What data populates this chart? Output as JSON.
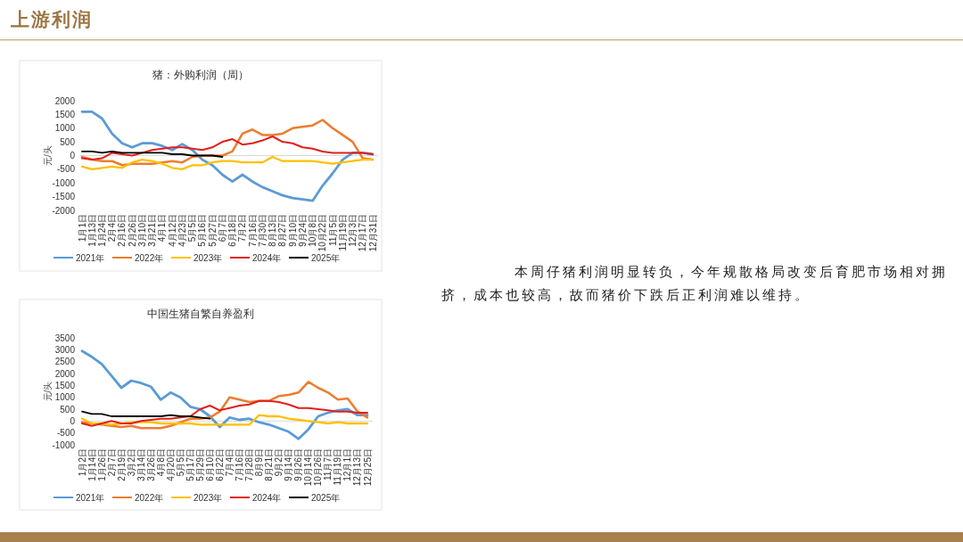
{
  "chart_data": [
    {
      "type": "line",
      "title": "猪：外购利润（周）",
      "ylabel": "元/头",
      "ylim": [
        -2000,
        2000
      ],
      "yticks": [
        -2000,
        -1500,
        -1000,
        -500,
        0,
        500,
        1000,
        1500,
        2000
      ],
      "legend": "bottom",
      "categories": [
        "1月1日",
        "1月13日",
        "1月24日",
        "2月4日",
        "2月16日",
        "2月26日",
        "3月10日",
        "3月21日",
        "4月1日",
        "4月12日",
        "4月23日",
        "5月5日",
        "5月16日",
        "5月27日",
        "6月7日",
        "6月18日",
        "7月2日",
        "7月16日",
        "7月30日",
        "8月13日",
        "8月27日",
        "9月10日",
        "9月24日",
        "10月8日",
        "10月22日",
        "11月5日",
        "11月19日",
        "12月3日",
        "12月17日",
        "12月31日"
      ],
      "series": [
        {
          "name": "2021年",
          "color": "#5b9bd5",
          "values": [
            1600,
            1600,
            1350,
            800,
            450,
            300,
            450,
            450,
            350,
            200,
            420,
            200,
            -150,
            -350,
            -700,
            -950,
            -700,
            -950,
            -1150,
            -1300,
            -1450,
            -1550,
            -1600,
            -1650,
            -1100,
            -650,
            -150,
            100,
            100,
            50
          ]
        },
        {
          "name": "2022年",
          "color": "#ed7d31",
          "values": [
            -50,
            -150,
            -200,
            -200,
            -350,
            -300,
            -300,
            -300,
            -250,
            -200,
            -250,
            -50,
            0,
            0,
            0,
            150,
            800,
            950,
            750,
            750,
            800,
            1000,
            1050,
            1100,
            1300,
            1000,
            750,
            500,
            -100,
            -150
          ]
        },
        {
          "name": "2023年",
          "color": "#ffc000",
          "values": [
            -400,
            -500,
            -450,
            -400,
            -450,
            -250,
            -150,
            -200,
            -300,
            -450,
            -500,
            -350,
            -350,
            -250,
            -200,
            -200,
            -250,
            -250,
            -250,
            -50,
            -200,
            -200,
            -200,
            -200,
            -250,
            -300,
            -250,
            -200,
            -150,
            -150
          ]
        },
        {
          "name": "2024年",
          "color": "#e0201b",
          "values": [
            -100,
            -150,
            -100,
            100,
            50,
            0,
            100,
            200,
            250,
            300,
            300,
            250,
            200,
            300,
            500,
            600,
            400,
            450,
            550,
            700,
            500,
            450,
            300,
            250,
            150,
            100,
            100,
            100,
            100,
            50
          ]
        },
        {
          "name": "2025年",
          "color": "#000000",
          "values": [
            150,
            150,
            100,
            150,
            100,
            100,
            100,
            100,
            100,
            50,
            50,
            0,
            0,
            0,
            -50,
            null,
            null,
            null,
            null,
            null,
            null,
            null,
            null,
            null,
            null,
            null,
            null,
            null,
            null,
            null
          ]
        }
      ]
    },
    {
      "type": "line",
      "title": "中国生猪自繁自养盈利",
      "ylabel": "元/头",
      "ylim": [
        -1000,
        3500
      ],
      "yticks": [
        -1000,
        -500,
        0,
        500,
        1000,
        1500,
        2000,
        2500,
        3000,
        3500
      ],
      "legend": "bottom",
      "categories": [
        "1月2日",
        "1月14日",
        "1月26日",
        "2月7日",
        "2月19日",
        "3月2日",
        "3月14日",
        "3月26日",
        "4月8日",
        "4月20日",
        "5月5日",
        "5月17日",
        "5月29日",
        "6月10日",
        "6月22日",
        "7月4日",
        "7月16日",
        "7月28日",
        "8月9日",
        "8月21日",
        "9月2日",
        "9月14日",
        "9月26日",
        "10月14日",
        "10月26日",
        "11月7日",
        "11月19日",
        "12月1日",
        "12月13日",
        "12月25日"
      ],
      "series": [
        {
          "name": "2021年",
          "color": "#5b9bd5",
          "values": [
            2950,
            2700,
            2400,
            1900,
            1400,
            1700,
            1600,
            1450,
            900,
            1200,
            1000,
            600,
            500,
            200,
            -250,
            150,
            50,
            100,
            -50,
            -150,
            -300,
            -450,
            -750,
            -350,
            200,
            350,
            450,
            500,
            250,
            250
          ]
        },
        {
          "name": "2022年",
          "color": "#ed7d31",
          "values": [
            -50,
            -100,
            -150,
            -200,
            -250,
            -200,
            -300,
            -300,
            -300,
            -200,
            -50,
            100,
            100,
            150,
            400,
            1000,
            900,
            800,
            850,
            850,
            1050,
            1100,
            1200,
            1650,
            1400,
            1200,
            900,
            950,
            400,
            150
          ]
        },
        {
          "name": "2023年",
          "color": "#ffc000",
          "values": [
            100,
            -100,
            -100,
            -150,
            -100,
            -50,
            -50,
            -50,
            -100,
            -100,
            -100,
            -100,
            -150,
            -150,
            -150,
            -150,
            -150,
            -150,
            250,
            200,
            200,
            100,
            50,
            0,
            -50,
            -100,
            -50,
            -100,
            -100,
            -100
          ]
        },
        {
          "name": "2024年",
          "color": "#e0201b",
          "values": [
            -100,
            -200,
            -100,
            0,
            -100,
            -100,
            0,
            50,
            100,
            100,
            150,
            200,
            500,
            650,
            450,
            550,
            650,
            700,
            850,
            850,
            800,
            700,
            550,
            550,
            500,
            450,
            400,
            400,
            350,
            350
          ]
        },
        {
          "name": "2025年",
          "color": "#000000",
          "values": [
            400,
            300,
            300,
            200,
            200,
            200,
            200,
            200,
            200,
            250,
            200,
            200,
            150,
            100,
            null,
            null,
            null,
            null,
            null,
            null,
            null,
            null,
            null,
            null,
            null,
            null,
            null,
            null,
            null,
            null
          ]
        }
      ]
    },
    {
      "type": "other",
      "title": "上游利润",
      "annotations": [
        "本周仔猪利润明显转负，今年规散格局改变后育肥市场相对拥挤，成本也较高，故而猪价下跌后正利润难以维持。"
      ]
    }
  ]
}
